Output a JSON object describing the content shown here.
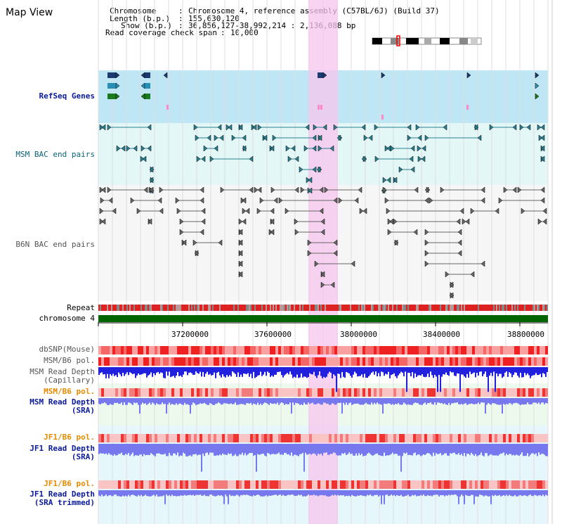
{
  "title": "Map View",
  "header": {
    "chromosome_label": "Chromosome",
    "chromosome_value": "Chromosome 4, reference assembly (C57BL/6J) (Build 37)",
    "length_label": "Length (b.p.)",
    "length_value": "155,630,120",
    "show_label": "Show (b.p.)",
    "show_value": "36,856,127-38,992,214 : 2,136,088 bp",
    "coverage_label": "Read coverage check span",
    "coverage_value": "10,000"
  },
  "tracks": {
    "refseq": "RefSeq Genes",
    "msm_bac": "MSM BAC end pairs",
    "b6n_bac": "B6N BAC end pairs",
    "repeat": "Repeat",
    "chromosome": "chromosome 4",
    "dbsnp": "dbSNP(Mouse)",
    "msm_b6_pol_1": "MSM/B6 pol.",
    "msm_read_depth_cap_1": "MSM Read Depth",
    "msm_read_depth_cap_2": "(Capillary)",
    "msm_b6_pol_2": "MSM/B6 pol.",
    "msm_read_depth_sra_1": "MSM Read Depth",
    "msm_read_depth_sra_2": "(SRA)",
    "jf1_b6_pol_1": "JF1/B6 pol.",
    "jf1_read_depth_sra_1": "JF1 Read Depth",
    "jf1_read_depth_sra_2": "(SRA)",
    "jf1_b6_pol_2": "JF1/B6 pol.",
    "jf1_read_depth_trim_1": "JF1 Read Depth",
    "jf1_read_depth_trim_2": "(SRA trimmed)"
  },
  "axis": {
    "ticks": [
      "37200000",
      "37600000",
      "38000000",
      "38400000",
      "38800000"
    ]
  },
  "colors": {
    "highlight": "#f7c6ee",
    "refseq_bg": "#bfe6f5",
    "msm_bac_bg": "#e4f7f7",
    "b6n_bac_bg": "#f6f6f6",
    "chromosome": "#006400",
    "repeat_red": "#dd2222",
    "repeat_gray": "#888888",
    "depth_blue": "#2020dd",
    "depth_lightblue": "#7777ee",
    "gene_navy": "#1c3a6e",
    "gene_teal": "#2a8fb5",
    "gene_green": "#1b7a1b",
    "bac_teal": "#2a7f8f",
    "bac_gray": "#666666"
  }
}
